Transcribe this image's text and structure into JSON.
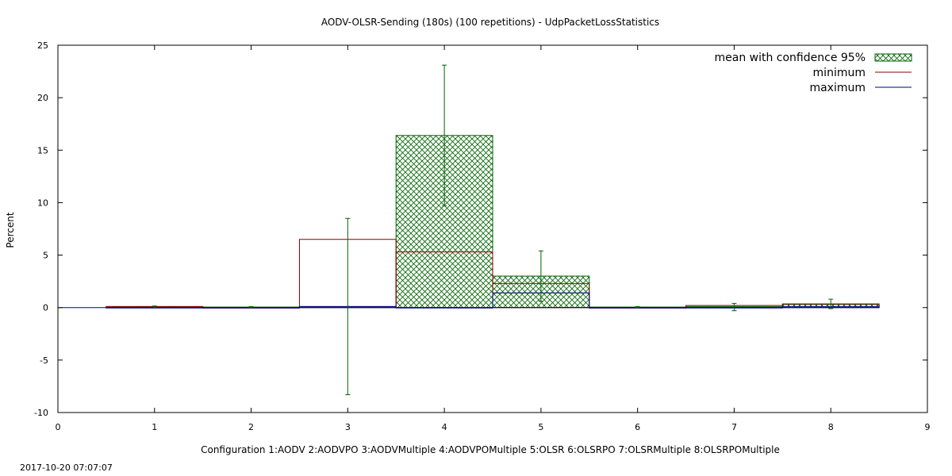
{
  "chart_data": {
    "type": "bar",
    "title": "AODV-OLSR-Sending (180s) (100 repetitions) - UdpPacketLossStatistics",
    "xlabel": "Configuration 1:AODV  2:AODVPO  3:AODVMultiple  4:AODVPOMultiple  5:OLSR  6:OLSRPO  7:OLSRMultiple  8:OLSRPOMultiple",
    "ylabel": "Percent",
    "xlim": [
      0,
      9
    ],
    "ylim": [
      -10,
      25
    ],
    "xticks": [
      "0",
      "1",
      "2",
      "3",
      "4",
      "5",
      "6",
      "7",
      "8",
      "9"
    ],
    "yticks": [
      "-10",
      "-5",
      "0",
      "5",
      "10",
      "15",
      "20",
      "25"
    ],
    "grid": false,
    "legend_position": "top-right",
    "categories": [
      1,
      2,
      3,
      4,
      5,
      6,
      7,
      8
    ],
    "series": [
      {
        "name": "mean with confidence 95%",
        "values": [
          0.1,
          0.05,
          0.1,
          16.4,
          3.0,
          0.05,
          0.1,
          0.3
        ],
        "ci_low": [
          0.05,
          0.0,
          -8.3,
          9.7,
          0.6,
          0.0,
          -0.3,
          -0.1
        ],
        "ci_high": [
          0.15,
          0.1,
          8.5,
          23.1,
          5.4,
          0.1,
          0.4,
          0.8
        ],
        "color": "#006400"
      },
      {
        "name": "minimum",
        "values": [
          0.1,
          0.0,
          6.5,
          5.3,
          2.3,
          0.0,
          0.2,
          0.35
        ],
        "color": "#8b0000"
      },
      {
        "name": "maximum",
        "values": [
          0.0,
          0.0,
          0.1,
          0.0,
          1.4,
          0.0,
          0.0,
          0.1
        ],
        "color": "#00008b"
      }
    ]
  },
  "footer": {
    "timestamp": "2017-10-20 07:07:07"
  }
}
